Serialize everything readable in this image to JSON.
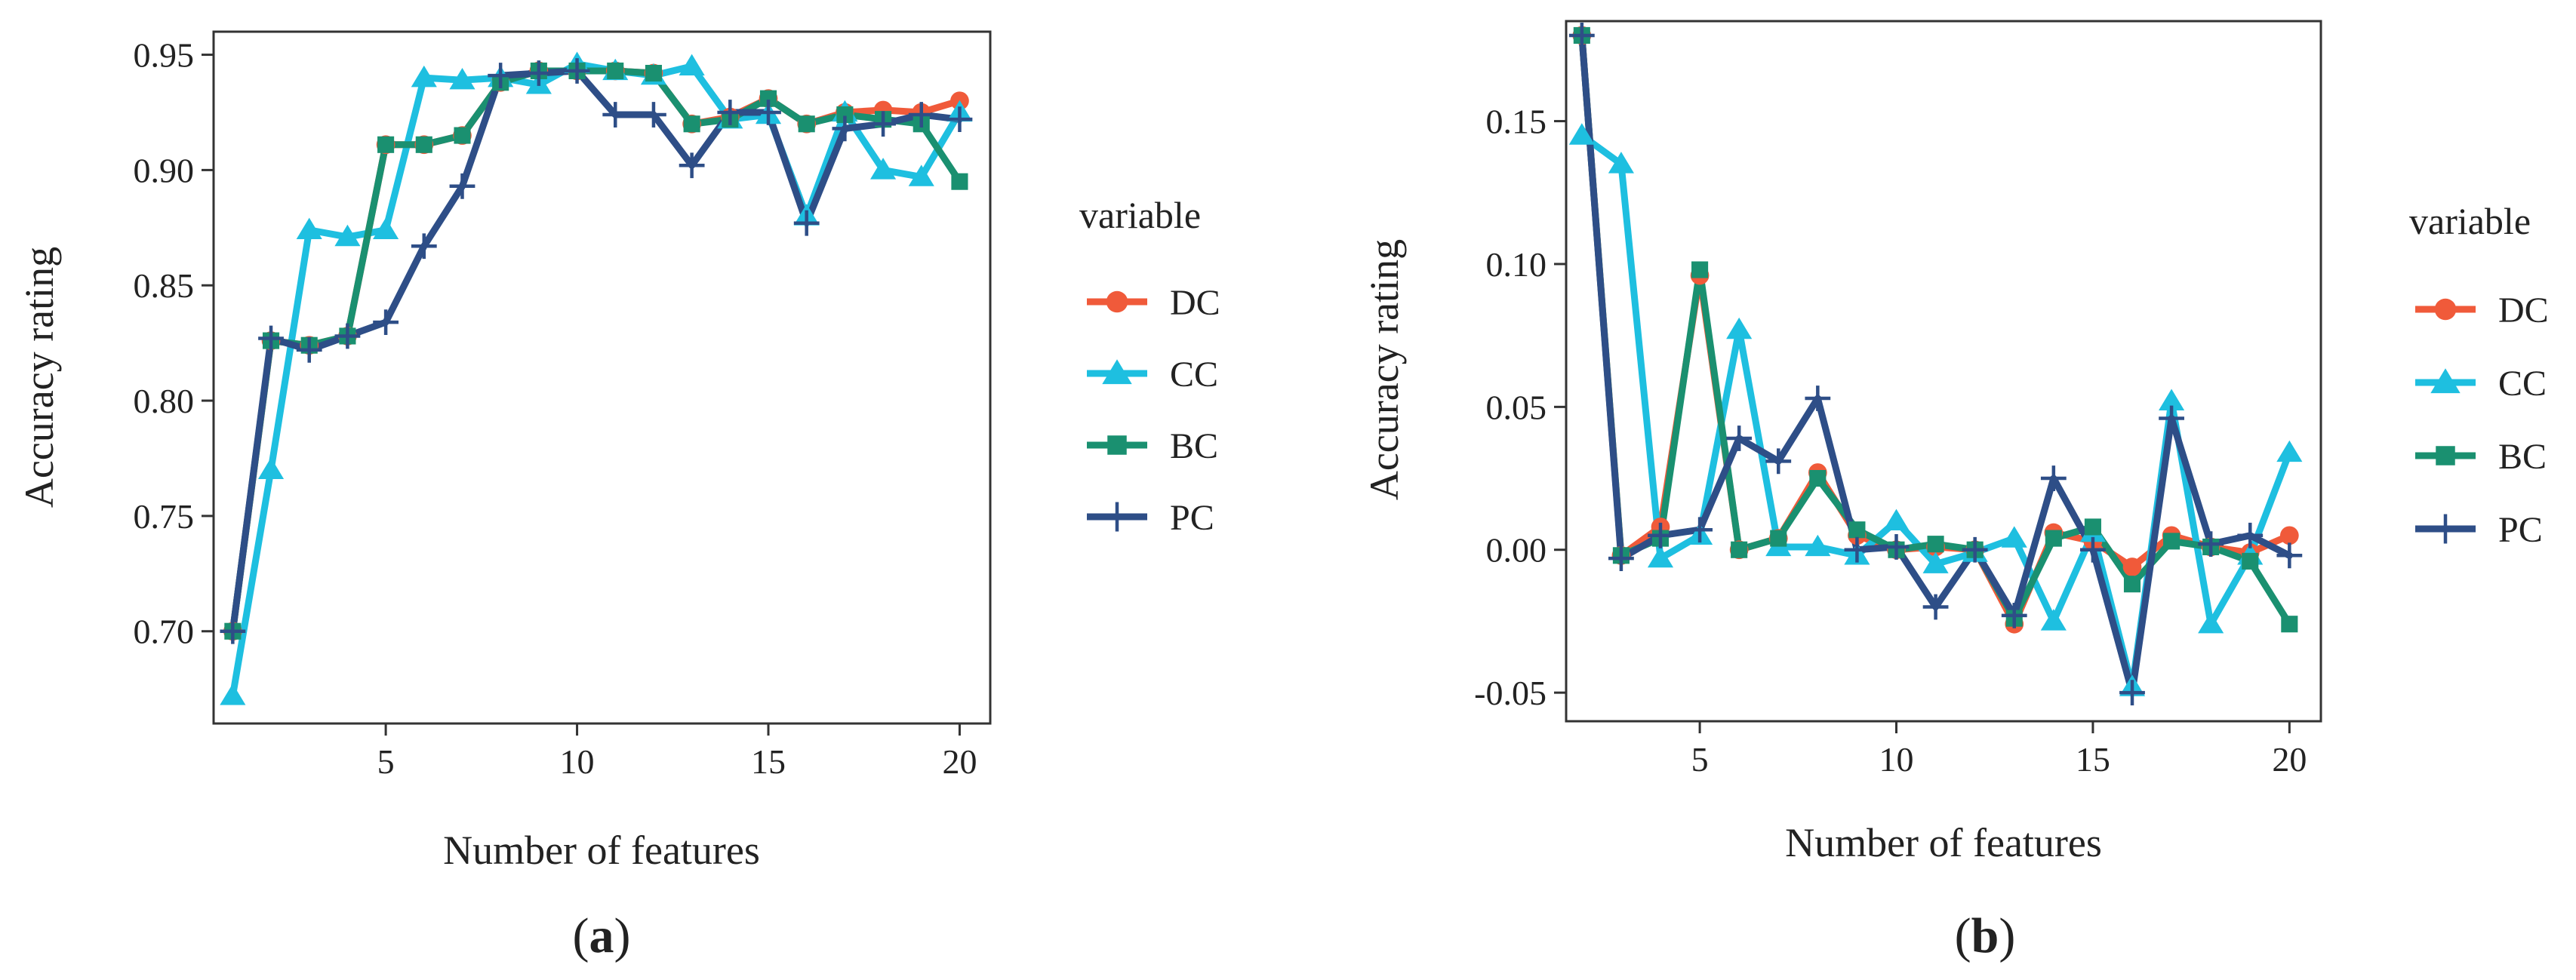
{
  "chart_data": [
    {
      "type": "line",
      "panel_label": "(a)",
      "panel_letter": "a",
      "title": "",
      "xlabel": "Number of features",
      "ylabel": "Accuracy rating",
      "xlim": [
        0.5,
        20.8
      ],
      "ylim": [
        0.66,
        0.96
      ],
      "xticks": [
        5,
        10,
        15,
        20
      ],
      "xtick_labels": [
        "5",
        "10",
        "15",
        "20"
      ],
      "yticks": [
        0.7,
        0.75,
        0.8,
        0.85,
        0.9,
        0.95
      ],
      "ytick_labels": [
        "0.70",
        "0.75",
        "0.80",
        "0.85",
        "0.90",
        "0.95"
      ],
      "grid": false,
      "legend_title": "variable",
      "legend_position": "right",
      "x": [
        1,
        2,
        3,
        4,
        5,
        6,
        7,
        8,
        9,
        10,
        11,
        12,
        13,
        14,
        15,
        16,
        17,
        18,
        19,
        20
      ],
      "series": [
        {
          "name": "DC",
          "color": "#f05a3a",
          "marker": "circle",
          "values": [
            0.7,
            0.826,
            0.824,
            0.828,
            0.911,
            0.911,
            0.915,
            0.938,
            0.943,
            0.943,
            0.943,
            0.942,
            0.92,
            0.923,
            0.931,
            0.92,
            0.925,
            0.926,
            0.925,
            0.93
          ]
        },
        {
          "name": "CC",
          "color": "#1ebfe0",
          "marker": "triangle",
          "values": [
            0.672,
            0.77,
            0.874,
            0.871,
            0.874,
            0.94,
            0.939,
            0.94,
            0.937,
            0.946,
            0.943,
            0.941,
            0.945,
            0.922,
            0.924,
            0.88,
            0.925,
            0.9,
            0.897,
            0.925
          ]
        },
        {
          "name": "BC",
          "color": "#1a9070",
          "marker": "square",
          "values": [
            0.7,
            0.826,
            0.824,
            0.828,
            0.911,
            0.911,
            0.915,
            0.938,
            0.943,
            0.943,
            0.943,
            0.942,
            0.92,
            0.922,
            0.931,
            0.92,
            0.924,
            0.922,
            0.92,
            0.895
          ]
        },
        {
          "name": "PC",
          "color": "#2e4e87",
          "marker": "plus",
          "values": [
            0.7,
            0.827,
            0.822,
            0.828,
            0.834,
            0.867,
            0.893,
            0.941,
            0.942,
            0.943,
            0.924,
            0.924,
            0.902,
            0.925,
            0.925,
            0.877,
            0.918,
            0.92,
            0.924,
            0.922
          ]
        }
      ]
    },
    {
      "type": "line",
      "panel_label": "(b)",
      "panel_letter": "b",
      "title": "",
      "xlabel": "Number of features",
      "ylabel": "Accuracy rating",
      "xlim": [
        1.6,
        20.8
      ],
      "ylim": [
        -0.06,
        0.185
      ],
      "xticks": [
        5,
        10,
        15,
        20
      ],
      "xtick_labels": [
        "5",
        "10",
        "15",
        "20"
      ],
      "yticks": [
        -0.05,
        0.0,
        0.05,
        0.1,
        0.15
      ],
      "ytick_labels": [
        "-0.05",
        "0.00",
        "0.05",
        "0.10",
        "0.15"
      ],
      "grid": false,
      "legend_title": "variable",
      "legend_position": "right",
      "x": [
        2,
        3,
        4,
        5,
        6,
        7,
        8,
        9,
        10,
        11,
        12,
        13,
        14,
        15,
        16,
        17,
        18,
        19,
        20
      ],
      "series": [
        {
          "name": "DC",
          "color": "#f05a3a",
          "marker": "circle",
          "values": [
            0.18,
            -0.002,
            0.008,
            0.096,
            0.0,
            0.004,
            0.027,
            0.005,
            0.0,
            0.001,
            0.0,
            -0.026,
            0.006,
            0.003,
            -0.006,
            0.005,
            0.001,
            -0.001,
            0.005
          ]
        },
        {
          "name": "CC",
          "color": "#1ebfe0",
          "marker": "triangle",
          "values": [
            0.145,
            0.135,
            -0.003,
            0.005,
            0.077,
            0.001,
            0.001,
            -0.002,
            0.01,
            -0.005,
            -0.001,
            0.004,
            -0.025,
            0.006,
            -0.048,
            0.052,
            -0.026,
            -0.002,
            0.034
          ]
        },
        {
          "name": "BC",
          "color": "#1a9070",
          "marker": "square",
          "values": [
            0.18,
            -0.002,
            0.004,
            0.098,
            0.0,
            0.004,
            0.025,
            0.007,
            0.0,
            0.002,
            0.0,
            -0.024,
            0.004,
            0.008,
            -0.012,
            0.003,
            0.001,
            -0.004,
            -0.026
          ]
        },
        {
          "name": "PC",
          "color": "#2e4e87",
          "marker": "plus",
          "values": [
            0.18,
            -0.003,
            0.005,
            0.007,
            0.039,
            0.031,
            0.053,
            0.0,
            0.001,
            -0.02,
            0.0,
            -0.023,
            0.025,
            0.0,
            -0.05,
            0.046,
            0.002,
            0.005,
            -0.002
          ]
        }
      ]
    }
  ]
}
